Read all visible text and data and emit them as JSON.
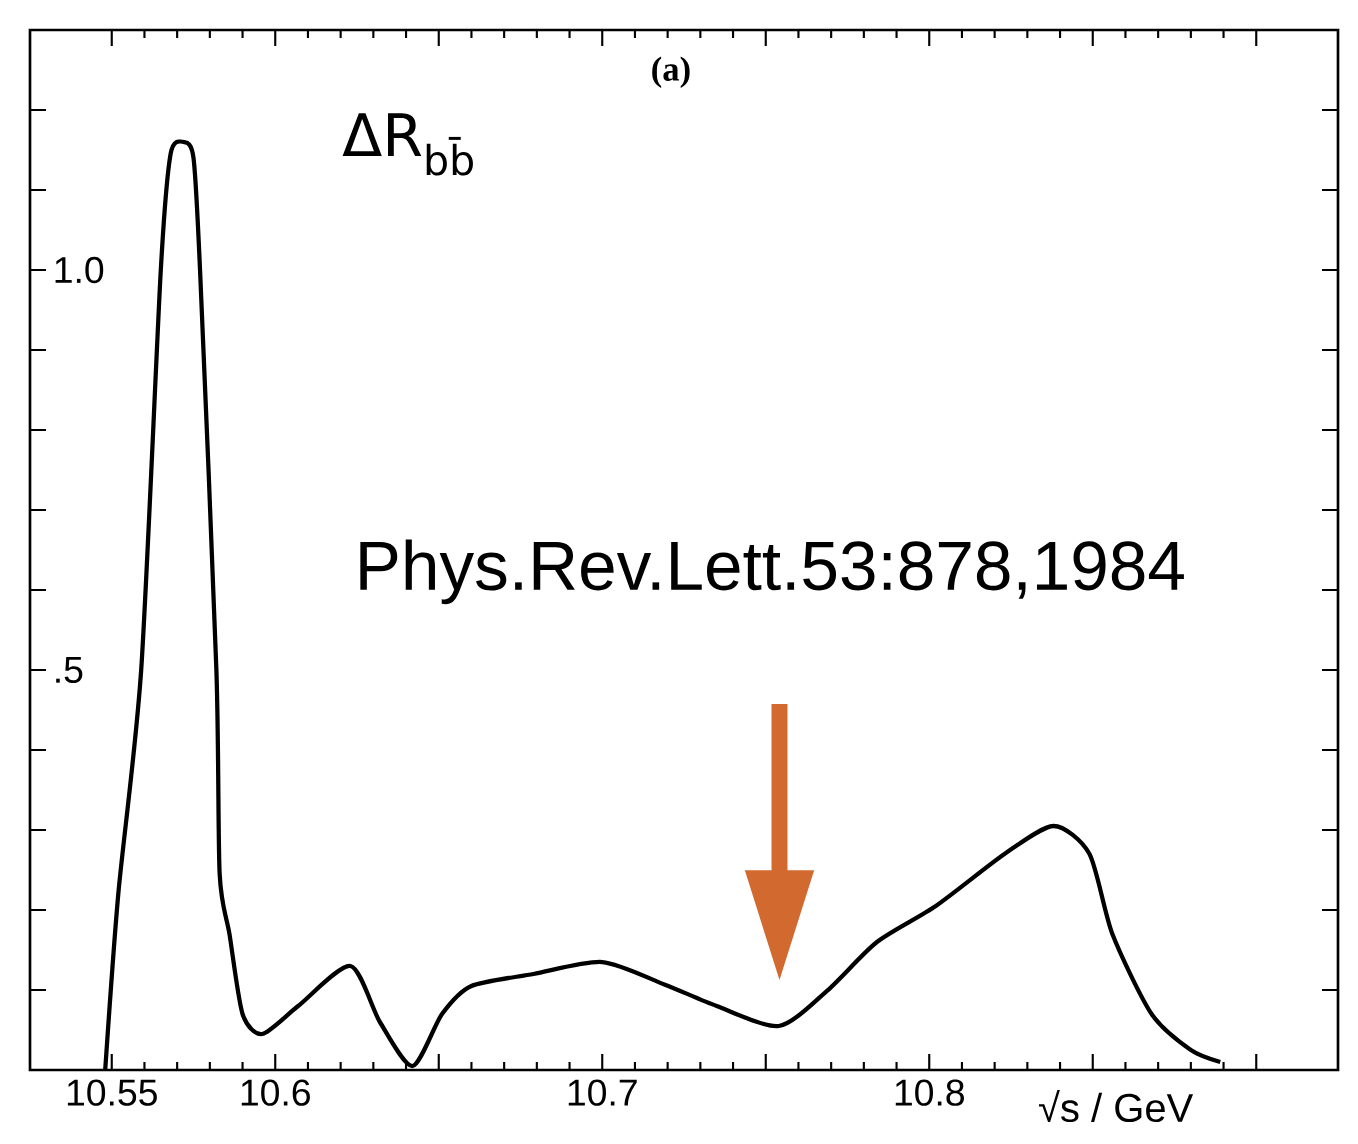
{
  "chart_data": {
    "type": "line",
    "title": "(a)",
    "ylabel": "ΔR$_{bb̄}$",
    "xlabel": "√s / GeV",
    "annotations": [
      "Phys.Rev.Lett.53:878,1984"
    ],
    "xlim": [
      10.525,
      10.925
    ],
    "ylim": [
      0,
      1.3
    ],
    "xticks": [
      {
        "value": 10.55,
        "label": "10.55"
      },
      {
        "value": 10.6,
        "label": "10.6"
      },
      {
        "value": 10.65,
        "label": null
      },
      {
        "value": 10.7,
        "label": "10.7"
      },
      {
        "value": 10.75,
        "label": null
      },
      {
        "value": 10.8,
        "label": "10.8"
      },
      {
        "value": 10.85,
        "label": null
      },
      {
        "value": 10.9,
        "label": null
      }
    ],
    "yticks": [
      {
        "value": 0.1,
        "label": null
      },
      {
        "value": 0.2,
        "label": null
      },
      {
        "value": 0.3,
        "label": null
      },
      {
        "value": 0.4,
        "label": null
      },
      {
        "value": 0.5,
        "label": ".5"
      },
      {
        "value": 0.6,
        "label": null
      },
      {
        "value": 0.7,
        "label": null
      },
      {
        "value": 0.8,
        "label": null
      },
      {
        "value": 0.9,
        "label": null
      },
      {
        "value": 1.0,
        "label": "1.0"
      },
      {
        "value": 1.1,
        "label": null
      },
      {
        "value": 1.2,
        "label": null
      }
    ],
    "marker": "none",
    "line_style": "solid",
    "series": [
      {
        "color": "#000000",
        "x": [
          10.548,
          10.552,
          10.559,
          10.565,
          10.568,
          10.572,
          10.575,
          10.577,
          10.582,
          10.583,
          10.586,
          10.59,
          10.596,
          10.607,
          10.623,
          10.632,
          10.642,
          10.651,
          10.66,
          10.679,
          10.7,
          10.719,
          10.735,
          10.754,
          10.769,
          10.784,
          10.802,
          10.823,
          10.838,
          10.849,
          10.856,
          10.868,
          10.88,
          10.889
        ],
        "values": [
          0,
          0.22,
          0.5,
          1.0,
          1.145,
          1.16,
          1.14,
          1.0,
          0.5,
          0.245,
          0.17,
          0.07,
          0.045,
          0.08,
          0.13,
          0.06,
          0.005,
          0.07,
          0.105,
          0.12,
          0.135,
          0.107,
          0.08,
          0.055,
          0.1,
          0.16,
          0.205,
          0.27,
          0.305,
          0.27,
          0.17,
          0.07,
          0.025,
          0.01
        ]
      }
    ]
  }
}
